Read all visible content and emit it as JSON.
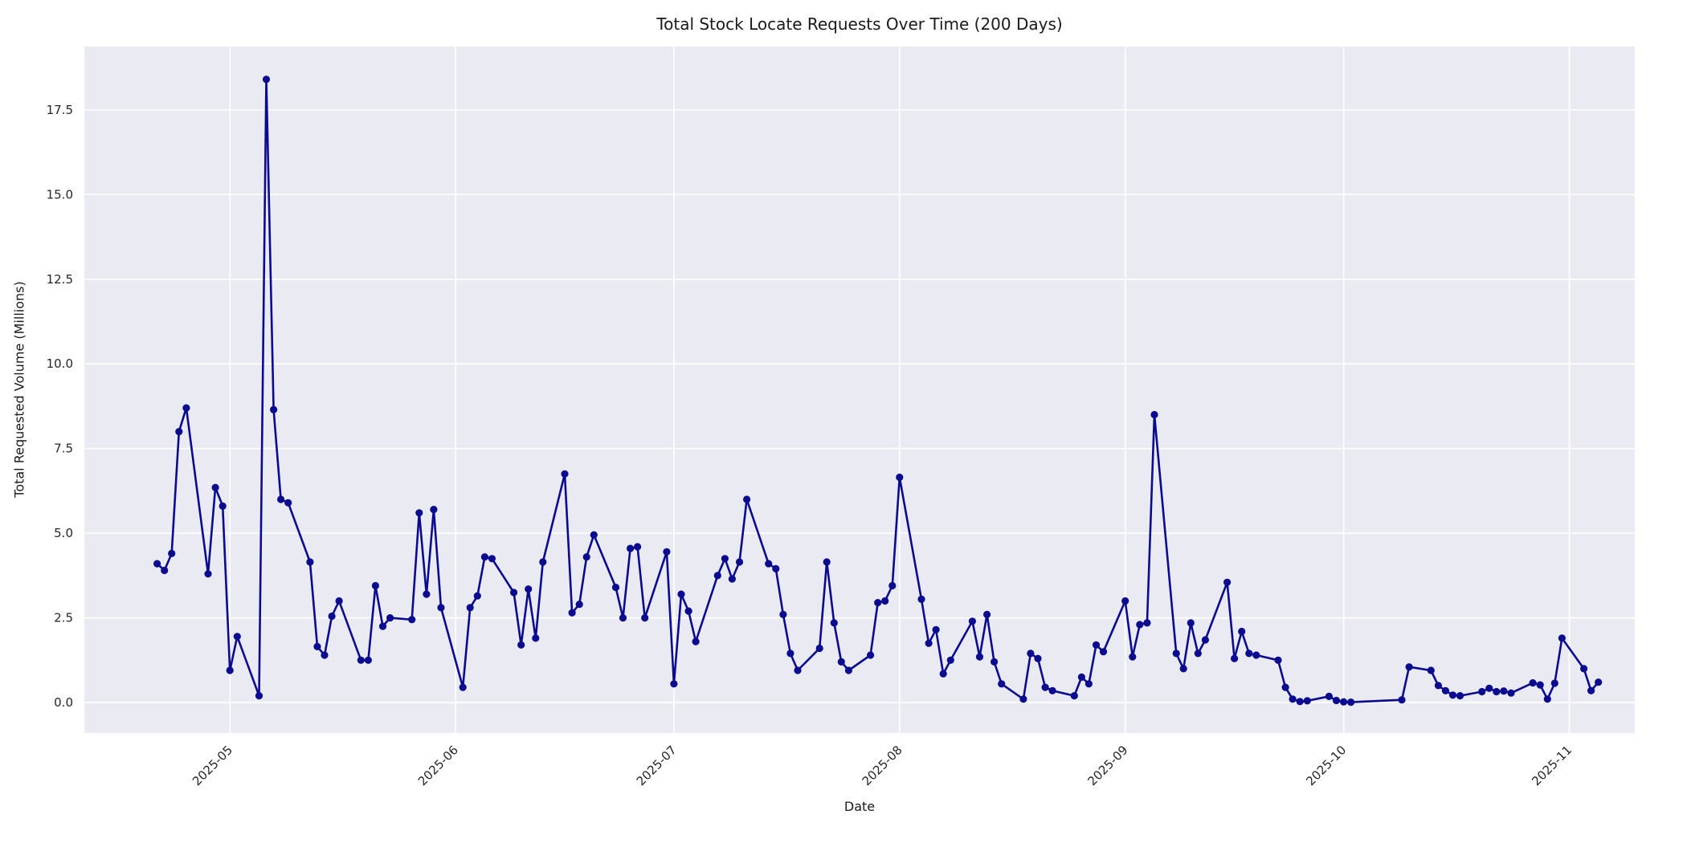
{
  "chart_data": {
    "type": "line",
    "title": "Total Stock Locate Requests Over Time (200 Days)",
    "xlabel": "Date",
    "ylabel": "Total Requested Volume (Millions)",
    "legend": false,
    "grid": true,
    "plot_bg_color": "#eaeaf2",
    "grid_color": "#ffffff",
    "line_color": "#0b0b8f",
    "marker": "o",
    "text_color": "#262626",
    "ylim": [
      -0.9,
      19.37
    ],
    "xlim": [
      "2025-04-11",
      "2025-11-10"
    ],
    "y_ticks": [
      0.0,
      2.5,
      5.0,
      7.5,
      10.0,
      12.5,
      15.0,
      17.5
    ],
    "y_tick_labels": [
      "0.0",
      "2.5",
      "5.0",
      "7.5",
      "10.0",
      "12.5",
      "15.0",
      "17.5"
    ],
    "x_ticks": [
      {
        "date": "2025-05-01",
        "label": "2025-05"
      },
      {
        "date": "2025-06-01",
        "label": "2025-06"
      },
      {
        "date": "2025-07-01",
        "label": "2025-07"
      },
      {
        "date": "2025-08-01",
        "label": "2025-08"
      },
      {
        "date": "2025-09-01",
        "label": "2025-09"
      },
      {
        "date": "2025-10-01",
        "label": "2025-10"
      },
      {
        "date": "2025-11-01",
        "label": "2025-11"
      }
    ],
    "x": [
      "2025-04-21",
      "2025-04-22",
      "2025-04-23",
      "2025-04-24",
      "2025-04-25",
      "2025-04-28",
      "2025-04-29",
      "2025-04-30",
      "2025-05-01",
      "2025-05-02",
      "2025-05-05",
      "2025-05-06",
      "2025-05-07",
      "2025-05-08",
      "2025-05-09",
      "2025-05-12",
      "2025-05-13",
      "2025-05-14",
      "2025-05-15",
      "2025-05-16",
      "2025-05-19",
      "2025-05-20",
      "2025-05-21",
      "2025-05-22",
      "2025-05-23",
      "2025-05-26",
      "2025-05-27",
      "2025-05-28",
      "2025-05-29",
      "2025-05-30",
      "2025-06-02",
      "2025-06-03",
      "2025-06-04",
      "2025-06-05",
      "2025-06-06",
      "2025-06-09",
      "2025-06-10",
      "2025-06-11",
      "2025-06-12",
      "2025-06-13",
      "2025-06-16",
      "2025-06-17",
      "2025-06-18",
      "2025-06-19",
      "2025-06-20",
      "2025-06-23",
      "2025-06-24",
      "2025-06-25",
      "2025-06-26",
      "2025-06-27",
      "2025-06-30",
      "2025-07-01",
      "2025-07-02",
      "2025-07-03",
      "2025-07-04",
      "2025-07-07",
      "2025-07-08",
      "2025-07-09",
      "2025-07-10",
      "2025-07-11",
      "2025-07-14",
      "2025-07-15",
      "2025-07-16",
      "2025-07-17",
      "2025-07-18",
      "2025-07-21",
      "2025-07-22",
      "2025-07-23",
      "2025-07-24",
      "2025-07-25",
      "2025-07-28",
      "2025-07-29",
      "2025-07-30",
      "2025-07-31",
      "2025-08-01",
      "2025-08-04",
      "2025-08-05",
      "2025-08-06",
      "2025-08-07",
      "2025-08-08",
      "2025-08-11",
      "2025-08-12",
      "2025-08-13",
      "2025-08-14",
      "2025-08-15",
      "2025-08-18",
      "2025-08-19",
      "2025-08-20",
      "2025-08-21",
      "2025-08-22",
      "2025-08-25",
      "2025-08-26",
      "2025-08-27",
      "2025-08-28",
      "2025-08-29",
      "2025-09-01",
      "2025-09-02",
      "2025-09-03",
      "2025-09-04",
      "2025-09-05",
      "2025-09-08",
      "2025-09-09",
      "2025-09-10",
      "2025-09-11",
      "2025-09-12",
      "2025-09-15",
      "2025-09-16",
      "2025-09-17",
      "2025-09-18",
      "2025-09-19",
      "2025-09-22",
      "2025-09-23",
      "2025-09-24",
      "2025-09-25",
      "2025-09-26",
      "2025-09-29",
      "2025-09-30",
      "2025-10-01",
      "2025-10-02",
      "2025-10-09",
      "2025-10-10",
      "2025-10-13",
      "2025-10-14",
      "2025-10-15",
      "2025-10-16",
      "2025-10-17",
      "2025-10-20",
      "2025-10-21",
      "2025-10-22",
      "2025-10-23",
      "2025-10-24",
      "2025-10-27",
      "2025-10-28",
      "2025-10-29",
      "2025-10-30",
      "2025-10-31",
      "2025-11-03",
      "2025-11-04",
      "2025-11-05"
    ],
    "values": [
      4.1,
      3.9,
      4.4,
      8.0,
      8.7,
      3.8,
      6.35,
      5.8,
      0.95,
      1.95,
      0.2,
      18.4,
      8.65,
      6.0,
      5.9,
      4.15,
      1.65,
      1.4,
      2.55,
      3.0,
      1.25,
      1.25,
      3.45,
      2.25,
      2.5,
      2.45,
      5.6,
      3.2,
      5.7,
      2.8,
      0.45,
      2.8,
      3.15,
      4.3,
      4.25,
      3.25,
      1.7,
      3.35,
      1.9,
      4.15,
      6.75,
      2.65,
      2.9,
      4.3,
      4.95,
      3.4,
      2.5,
      4.55,
      4.6,
      2.5,
      4.45,
      0.55,
      3.2,
      2.7,
      1.8,
      3.75,
      4.25,
      3.65,
      4.15,
      6.0,
      4.1,
      3.95,
      2.6,
      1.45,
      0.95,
      1.6,
      4.15,
      2.35,
      1.2,
      0.95,
      1.4,
      2.95,
      3.0,
      3.45,
      6.65,
      3.05,
      1.75,
      2.15,
      0.85,
      1.25,
      2.4,
      1.35,
      2.6,
      1.2,
      0.55,
      0.1,
      1.45,
      1.3,
      0.45,
      0.35,
      0.2,
      0.75,
      0.55,
      1.7,
      1.5,
      3.0,
      1.35,
      2.3,
      2.35,
      8.5,
      1.45,
      1.0,
      2.35,
      1.45,
      1.85,
      3.55,
      1.3,
      2.1,
      1.45,
      1.4,
      1.25,
      0.45,
      0.1,
      0.03,
      0.05,
      0.18,
      0.06,
      0.02,
      0.01,
      0.08,
      1.05,
      0.95,
      0.5,
      0.35,
      0.22,
      0.2,
      0.32,
      0.42,
      0.32,
      0.34,
      0.28,
      0.58,
      0.52,
      0.1,
      0.57,
      1.9,
      1.0,
      0.35,
      0.6
    ]
  }
}
